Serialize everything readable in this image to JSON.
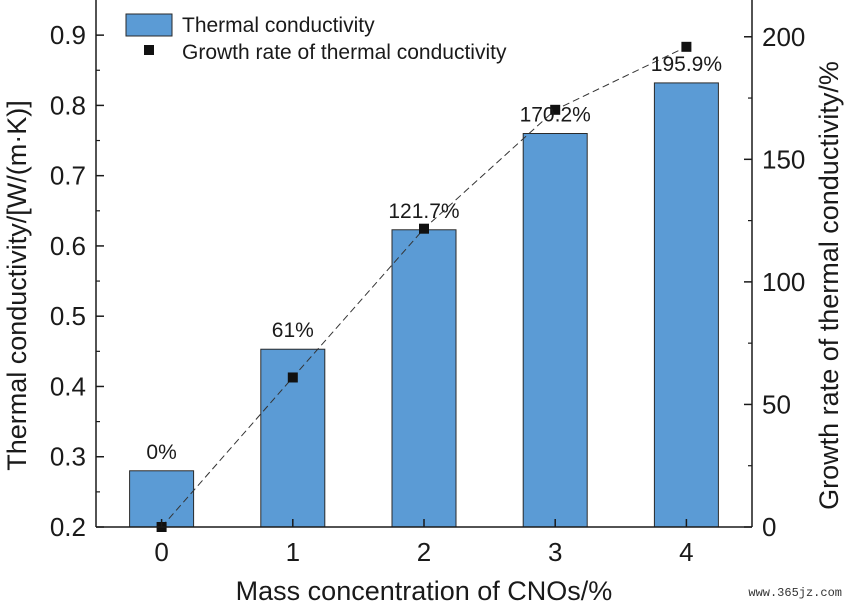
{
  "chart_data": {
    "type": "bar",
    "categories": [
      "0",
      "1",
      "2",
      "3",
      "4"
    ],
    "series": [
      {
        "name": "Thermal conductivity",
        "type": "bar",
        "axis": "left",
        "values": [
          0.28,
          0.453,
          0.623,
          0.76,
          0.832
        ],
        "color": "#5b9bd5"
      },
      {
        "name": "Growth rate of thermal conductivity",
        "type": "line",
        "axis": "right",
        "values": [
          0,
          61,
          121.7,
          170.2,
          195.9
        ],
        "labels": [
          "0%",
          "61%",
          "121.7%",
          "170.2%",
          "195.9%"
        ],
        "color": "#111111"
      }
    ],
    "xlabel": "Mass concentration of CNOs/%",
    "ylabel": "Thermal conductivity/[W/(m·K)]",
    "y2label": "Growth rate of thermal conductivity/%",
    "ylim": [
      0.2,
      0.95
    ],
    "y2lim": [
      0,
      215
    ],
    "yticks": [
      "0.2",
      "0.3",
      "0.4",
      "0.5",
      "0.6",
      "0.7",
      "0.8",
      "0.9"
    ],
    "y2ticks": [
      "0",
      "50",
      "100",
      "150",
      "200"
    ],
    "legend": "top-left",
    "grid": false
  },
  "watermark": "www.365jz.com"
}
